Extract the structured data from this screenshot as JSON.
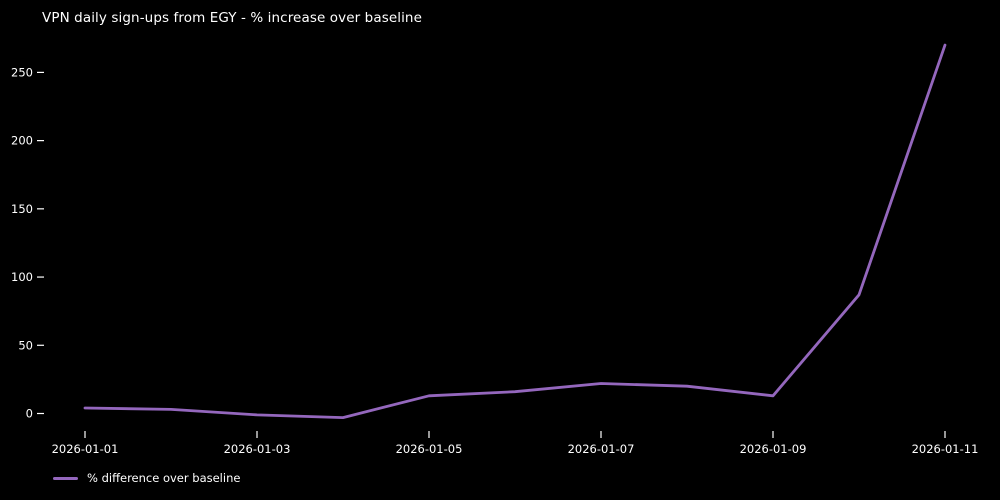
{
  "page": {
    "background_color": "#000000",
    "text_color": "#ffffff"
  },
  "chart_data": {
    "type": "line",
    "title": "VPN daily sign-ups from EGY - % increase over baseline",
    "series": [
      {
        "name": "% difference over baseline",
        "color": "#9467bd",
        "values": [
          4,
          3,
          -1,
          -3,
          13,
          16,
          22,
          20,
          13,
          87,
          270
        ]
      }
    ],
    "x": [
      "2026-01-01",
      "2026-01-02",
      "2026-01-03",
      "2026-01-04",
      "2026-01-05",
      "2026-01-06",
      "2026-01-07",
      "2026-01-08",
      "2026-01-09",
      "2026-01-10",
      "2026-01-11"
    ],
    "xtick_labels": [
      "2026-01-01",
      "2026-01-03",
      "2026-01-05",
      "2026-01-07",
      "2026-01-09",
      "2026-01-11"
    ],
    "xtick_indices": [
      0,
      2,
      4,
      6,
      8,
      10
    ],
    "yticks": [
      0,
      50,
      100,
      150,
      200,
      250
    ],
    "ylim": [
      -16,
      284
    ],
    "xlabel": "",
    "ylabel": "",
    "grid": false,
    "legend_position": "lower-left-below-axis",
    "background": "#000000"
  },
  "legend": {
    "label": "% difference over baseline"
  }
}
